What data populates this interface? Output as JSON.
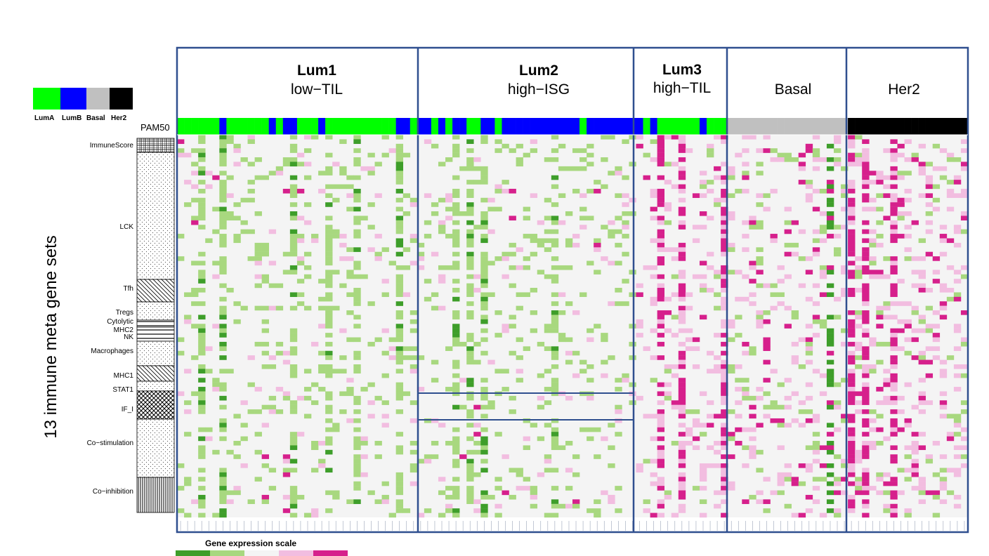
{
  "legend_pam50": {
    "items": [
      {
        "label": "LumA",
        "color": "#00ff00"
      },
      {
        "label": "LumB",
        "color": "#0000ff"
      },
      {
        "label": "Basal",
        "color": "#c0c0c0"
      },
      {
        "label": "Her2",
        "color": "#000000"
      }
    ]
  },
  "pam50_label": "PAM50",
  "ylabel": "13 immune meta gene sets",
  "expression_scale": {
    "title": "Gene expression scale",
    "colors": [
      "#3e9e2a",
      "#a8d87f",
      "#f4f4f4",
      "#f2bde0",
      "#d6208c"
    ]
  },
  "chart_data": {
    "type": "heatmap",
    "clusters": [
      {
        "name": "Lum1",
        "subtitle": "low−TIL",
        "bold": true
      },
      {
        "name": "Lum2",
        "subtitle": "high−ISG",
        "bold": true
      },
      {
        "name": "Lum3",
        "subtitle": "high−TIL",
        "bold": true
      },
      {
        "name": "Basal",
        "subtitle": "",
        "bold": false
      },
      {
        "name": "Her2",
        "subtitle": "",
        "bold": false
      }
    ],
    "gene_sets": [
      "ImmuneScore",
      "LCK",
      "Tfh",
      "Tregs",
      "Cytolytic",
      "MHC2",
      "NK",
      "Macrophages",
      "MHC1",
      "STAT1",
      "IF_I",
      "Co−stimulation",
      "Co−inhibition"
    ],
    "colors": {
      "LumA": "#00ff00",
      "LumB": "#0000ff",
      "Basal": "#c0c0c0",
      "Her2": "#000000",
      "frame": "#2f4f8f",
      "background": "#f4f4f4"
    }
  }
}
